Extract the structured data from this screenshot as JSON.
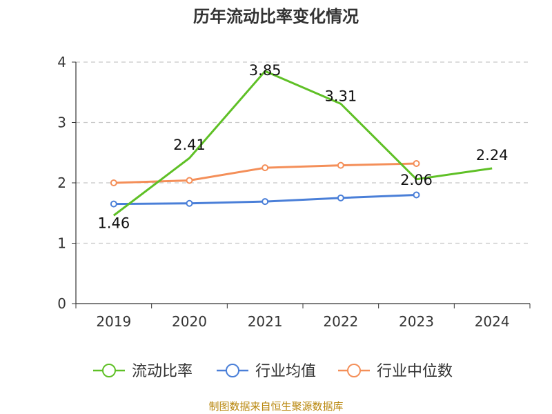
{
  "chart_data": {
    "type": "line",
    "title": "历年流动比率变化情况",
    "categories": [
      "2019",
      "2020",
      "2021",
      "2022",
      "2023",
      "2024"
    ],
    "ylim": [
      0,
      4
    ],
    "yticks": [
      "0",
      "1",
      "2",
      "3",
      "4"
    ],
    "grid": "horizontal dashed",
    "legend_position": "bottom",
    "series": [
      {
        "name": "流动比率",
        "color": "#5fc026",
        "values": [
          1.46,
          2.41,
          3.85,
          3.31,
          2.06,
          2.24
        ],
        "labels": [
          "1.46",
          "2.41",
          "3.85",
          "3.31",
          "2.06",
          "2.24"
        ]
      },
      {
        "name": "行业均值",
        "color": "#4a7fd8",
        "values": [
          1.65,
          1.66,
          1.69,
          1.75,
          1.8,
          null
        ]
      },
      {
        "name": "行业中位数",
        "color": "#f48f59",
        "values": [
          2.0,
          2.04,
          2.25,
          2.29,
          2.32,
          null
        ]
      }
    ]
  },
  "footer": {
    "source": "制图数据来自恒生聚源数据库"
  }
}
